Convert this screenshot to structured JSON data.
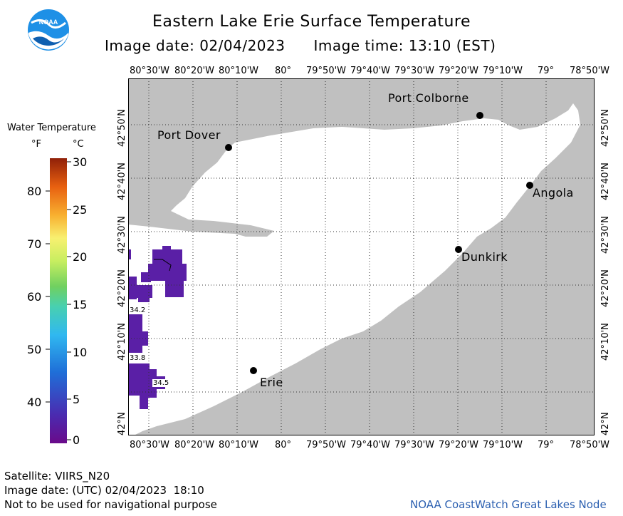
{
  "header": {
    "title": "Eastern Lake Erie Surface Temperature",
    "image_date": "Image date: 02/04/2023",
    "image_time": "Image time: 13:10 (EST)"
  },
  "logo": {
    "text": "NOAA",
    "icon": "noaa-logo-icon",
    "color": "#1e90e6"
  },
  "legend": {
    "title": "Water Temperature",
    "unit_f": "°F",
    "unit_c": "°C",
    "f_ticks": [
      "80",
      "70",
      "60",
      "50",
      "40"
    ],
    "c_ticks": [
      "30",
      "25",
      "20",
      "15",
      "10",
      "5",
      "0"
    ]
  },
  "axes": {
    "lon_labels": [
      "80°30'W",
      "80°20'W",
      "80°10'W",
      "80°",
      "79°50'W",
      "79°40'W",
      "79°30'W",
      "79°20'W",
      "79°10'W",
      "79°",
      "78°50'W"
    ],
    "lat_labels": [
      "42°50'N",
      "42°40'N",
      "42°30'N",
      "42°20'N",
      "42°10'N",
      "42°N"
    ]
  },
  "places": {
    "port_colborne": "Port Colborne",
    "port_dover": "Port Dover",
    "angola": "Angola",
    "dunkirk": "Dunkirk",
    "erie": "Erie"
  },
  "sst_labels": {
    "a": "34.2",
    "b": "33.8",
    "c": "34.5"
  },
  "colors": {
    "land": "#c0c0c0",
    "water": "#ffffff",
    "sst": "#5a1fa6"
  },
  "footer": {
    "satellite": "Satellite: VIIRS_N20",
    "utc": "Image date: (UTC) 02/04/2023  18:10",
    "disclaimer": "Not to be used for navigational purpose",
    "credit": "NOAA CoastWatch Great Lakes Node"
  }
}
